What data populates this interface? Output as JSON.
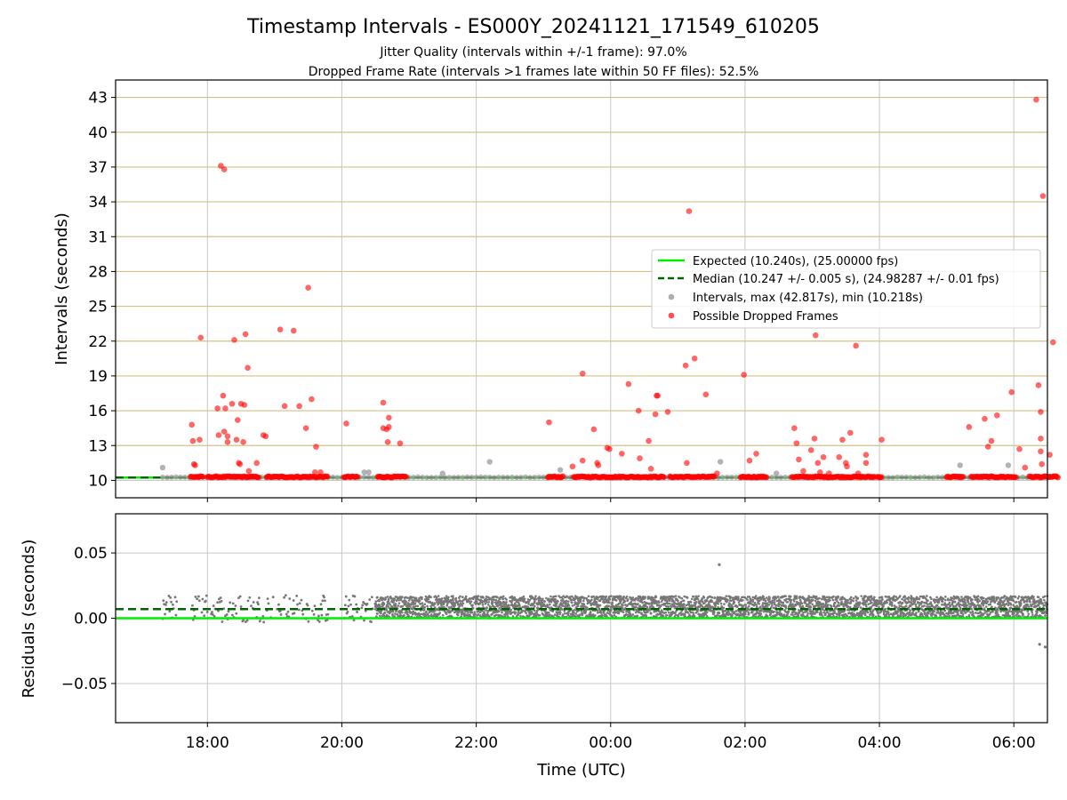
{
  "figure": {
    "title": "Timestamp Intervals - ES000Y_20241121_171549_610205",
    "subtitle_1": "Jitter Quality (intervals within +/-1 frame): 97.0%",
    "subtitle_2": "Dropped Frame Rate (intervals >1 frames late within 50 FF files): 52.5%",
    "xlabel": "Time (UTC)"
  },
  "colors": {
    "expected": "#00ee00",
    "median": "#006400",
    "intervals": "#999999",
    "dropped": "#ff0000",
    "residual_points": "#777777",
    "hgrid_top": "#d2c387",
    "grid": "#c8c8c8"
  },
  "chart_data": [
    {
      "type": "scatter",
      "ylabel": "Intervals (seconds)",
      "yticks": [
        10,
        13,
        16,
        19,
        22,
        25,
        28,
        31,
        34,
        37,
        40,
        43
      ],
      "ylim": [
        8.5,
        44.5
      ],
      "xlim": [
        "16:38",
        "06:30"
      ],
      "xticks": [
        "18:00",
        "20:00",
        "22:00",
        "00:00",
        "02:00",
        "04:00",
        "06:00"
      ],
      "grid": true,
      "legend_position": "right",
      "expected_value": 10.24,
      "median_value": 10.247,
      "series": [
        {
          "name": "Expected (10.240s), (25.00000 fps)",
          "kind": "line",
          "style": "solid"
        },
        {
          "name": "Median (10.247 +/- 0.005 s), (24.98287 +/- 0.01 fps)",
          "kind": "line",
          "style": "dashed"
        },
        {
          "name": "Intervals, max (42.817s), min (10.218s)",
          "kind": "points",
          "points": [
            [
              "17:20",
              11.1
            ],
            [
              "20:20",
              10.7
            ],
            [
              "20:24",
              10.7
            ],
            [
              "21:30",
              10.6
            ],
            [
              "22:12",
              11.6
            ],
            [
              "23:15",
              10.9
            ],
            [
              "01:38",
              11.6
            ],
            [
              "02:28",
              10.6
            ],
            [
              "05:12",
              11.3
            ],
            [
              "05:55",
              11.3
            ]
          ]
        },
        {
          "name": "Possible Dropped Frames",
          "kind": "points",
          "points": [
            [
              "17:46",
              14.8
            ],
            [
              "17:47",
              13.4
            ],
            [
              "17:48",
              11.4
            ],
            [
              "17:49",
              11.3
            ],
            [
              "17:53",
              13.5
            ],
            [
              "17:54",
              22.3
            ],
            [
              "18:09",
              16.2
            ],
            [
              "18:10",
              13.9
            ],
            [
              "18:12",
              37.1
            ],
            [
              "18:14",
              17.3
            ],
            [
              "18:15",
              14.2
            ],
            [
              "18:15",
              36.8
            ],
            [
              "18:16",
              16.2
            ],
            [
              "18:18",
              13.8
            ],
            [
              "18:18",
              13.3
            ],
            [
              "18:22",
              16.6
            ],
            [
              "18:24",
              22.1
            ],
            [
              "18:26",
              13.5
            ],
            [
              "18:27",
              15.2
            ],
            [
              "18:28",
              11.5
            ],
            [
              "18:29",
              11.4
            ],
            [
              "18:30",
              16.6
            ],
            [
              "18:32",
              13.3
            ],
            [
              "18:33",
              16.5
            ],
            [
              "18:34",
              22.6
            ],
            [
              "18:36",
              19.7
            ],
            [
              "18:37",
              10.8
            ],
            [
              "18:44",
              11.5
            ],
            [
              "18:50",
              13.9
            ],
            [
              "18:52",
              13.8
            ],
            [
              "19:05",
              23.0
            ],
            [
              "19:09",
              16.4
            ],
            [
              "19:17",
              22.9
            ],
            [
              "19:22",
              16.4
            ],
            [
              "19:28",
              14.5
            ],
            [
              "19:30",
              26.6
            ],
            [
              "19:33",
              17.0
            ],
            [
              "19:36",
              10.7
            ],
            [
              "19:37",
              12.9
            ],
            [
              "19:41",
              10.7
            ],
            [
              "20:04",
              14.9
            ],
            [
              "20:37",
              16.7
            ],
            [
              "20:37",
              14.5
            ],
            [
              "20:40",
              14.4
            ],
            [
              "20:41",
              13.3
            ],
            [
              "20:42",
              15.4
            ],
            [
              "20:42",
              14.6
            ],
            [
              "20:52",
              13.2
            ],
            [
              "23:05",
              15.0
            ],
            [
              "23:26",
              11.2
            ],
            [
              "23:35",
              19.2
            ],
            [
              "23:35",
              11.7
            ],
            [
              "23:45",
              14.4
            ],
            [
              "23:48",
              11.5
            ],
            [
              "23:49",
              11.3
            ],
            [
              "23:57",
              12.8
            ],
            [
              "23:59",
              12.7
            ],
            [
              "00:10",
              12.3
            ],
            [
              "00:16",
              18.3
            ],
            [
              "00:25",
              16.0
            ],
            [
              "00:26",
              11.9
            ],
            [
              "00:34",
              13.4
            ],
            [
              "00:36",
              11.0
            ],
            [
              "00:40",
              15.7
            ],
            [
              "00:41",
              17.3
            ],
            [
              "00:42",
              17.3
            ],
            [
              "00:51",
              15.9
            ],
            [
              "01:07",
              19.9
            ],
            [
              "01:08",
              11.5
            ],
            [
              "01:10",
              33.2
            ],
            [
              "01:15",
              20.5
            ],
            [
              "01:25",
              17.4
            ],
            [
              "01:35",
              10.6
            ],
            [
              "01:59",
              19.1
            ],
            [
              "02:04",
              11.7
            ],
            [
              "02:10",
              12.3
            ],
            [
              "02:44",
              14.5
            ],
            [
              "02:46",
              13.2
            ],
            [
              "02:48",
              11.8
            ],
            [
              "02:52",
              10.8
            ],
            [
              "02:59",
              12.6
            ],
            [
              "03:02",
              13.6
            ],
            [
              "03:03",
              22.5
            ],
            [
              "03:05",
              11.5
            ],
            [
              "03:07",
              10.7
            ],
            [
              "03:10",
              12.0
            ],
            [
              "03:15",
              10.6
            ],
            [
              "03:24",
              12.0
            ],
            [
              "03:27",
              13.5
            ],
            [
              "03:30",
              11.5
            ],
            [
              "03:31",
              11.2
            ],
            [
              "03:34",
              14.1
            ],
            [
              "03:39",
              21.6
            ],
            [
              "03:41",
              10.6
            ],
            [
              "03:48",
              12.2
            ],
            [
              "03:48",
              11.5
            ],
            [
              "04:02",
              13.5
            ],
            [
              "05:20",
              14.6
            ],
            [
              "05:34",
              15.3
            ],
            [
              "05:37",
              12.9
            ],
            [
              "05:40",
              13.4
            ],
            [
              "05:45",
              15.6
            ],
            [
              "05:58",
              17.6
            ],
            [
              "06:05",
              12.7
            ],
            [
              "06:10",
              11.1
            ],
            [
              "06:20",
              42.8
            ],
            [
              "06:22",
              18.2
            ],
            [
              "06:24",
              15.9
            ],
            [
              "06:24",
              13.6
            ],
            [
              "06:24",
              12.5
            ],
            [
              "06:25",
              11.4
            ],
            [
              "06:26",
              34.5
            ],
            [
              "06:32",
              12.2
            ],
            [
              "06:35",
              21.9
            ]
          ],
          "clusters_at_baseline": [
            [
              "17:45",
              "17:57"
            ],
            [
              "18:00",
              "18:46"
            ],
            [
              "18:53",
              "19:48"
            ],
            [
              "20:02",
              "20:15"
            ],
            [
              "20:32",
              "20:58"
            ],
            [
              "23:04",
              "23:18"
            ],
            [
              "23:27",
              "00:48"
            ],
            [
              "00:53",
              "01:33"
            ],
            [
              "01:56",
              "02:20"
            ],
            [
              "02:42",
              "03:56"
            ],
            [
              "03:58",
              "04:02"
            ],
            [
              "05:00",
              "05:15"
            ],
            [
              "05:22",
              "06:02"
            ],
            [
              "06:14",
              "06:40"
            ]
          ]
        }
      ]
    },
    {
      "type": "scatter",
      "ylabel": "Residuals (seconds)",
      "yticks": [
        -0.05,
        0.0,
        0.05
      ],
      "ytick_labels": [
        "−0.05",
        "0.00",
        "0.05"
      ],
      "ylim": [
        -0.08,
        0.08
      ],
      "xlim": [
        "16:38",
        "06:30"
      ],
      "xticks": [
        "18:00",
        "20:00",
        "22:00",
        "00:00",
        "02:00",
        "04:00",
        "06:00"
      ],
      "grid": true,
      "expected_residual": 0.0,
      "median_residual": 0.007,
      "series": [
        {
          "name": "Residuals",
          "kind": "points",
          "outliers": [
            [
              "01:37",
              0.041
            ],
            [
              "06:23",
              -0.02
            ],
            [
              "06:28",
              -0.022
            ]
          ],
          "dense_bands": [
            {
              "from": "17:20",
              "to": "20:30",
              "low": -0.003,
              "high": 0.018
            },
            {
              "from": "20:30",
              "to": "06:40",
              "low": 0.0,
              "high": 0.017
            }
          ]
        }
      ]
    }
  ]
}
